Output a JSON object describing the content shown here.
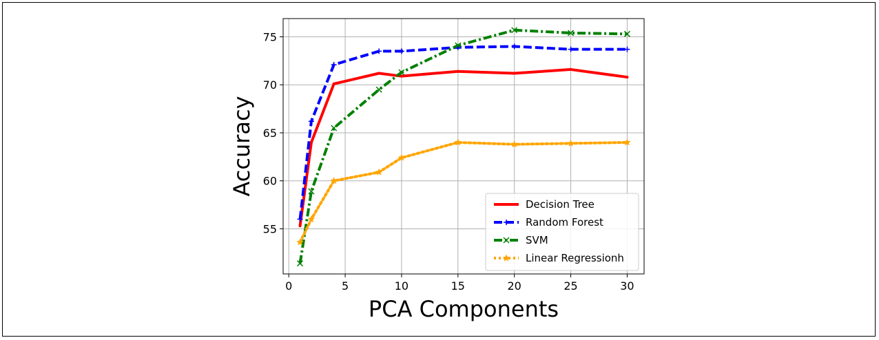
{
  "chart_data": {
    "type": "line",
    "title": "",
    "xlabel": "PCA Components",
    "ylabel": "Accuracy",
    "xlim": [
      -0.5,
      31.5
    ],
    "ylim": [
      50.3,
      76.9
    ],
    "xticks": [
      0,
      5,
      10,
      15,
      20,
      25,
      30
    ],
    "yticks": [
      55,
      60,
      65,
      70,
      75
    ],
    "grid": true,
    "legend_position": "lower-right",
    "x": [
      1,
      2,
      4,
      8,
      10,
      15,
      20,
      25,
      30
    ],
    "series": [
      {
        "name": "Decision Tree",
        "color": "#ff0000",
        "dash": "solid",
        "marker": "point",
        "values": [
          55.3,
          64.0,
          70.1,
          71.2,
          70.9,
          71.4,
          71.2,
          71.6,
          70.8
        ]
      },
      {
        "name": "Random Forest",
        "color": "#0000ff",
        "dash": "dashed",
        "marker": "plus",
        "values": [
          56.0,
          66.2,
          72.1,
          73.5,
          73.5,
          73.9,
          74.0,
          73.7,
          73.7
        ]
      },
      {
        "name": "SVM",
        "color": "#008000",
        "dash": "dashdot",
        "marker": "x",
        "values": [
          51.4,
          58.9,
          65.5,
          69.5,
          71.3,
          74.1,
          75.7,
          75.4,
          75.3
        ]
      },
      {
        "name": "Linear Regressionh",
        "color": "#ffa500",
        "dash": "dotted",
        "marker": "star",
        "values": [
          53.6,
          56.0,
          60.0,
          60.9,
          62.4,
          64.0,
          63.8,
          63.9,
          64.0
        ]
      }
    ]
  }
}
